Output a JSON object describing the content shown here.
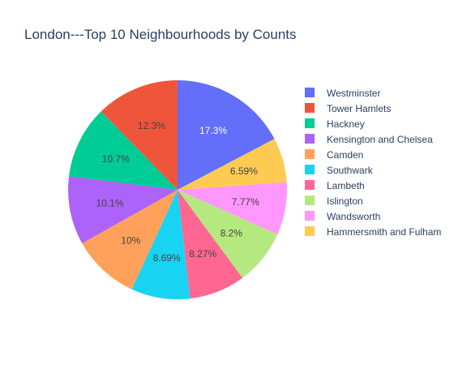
{
  "chart_data": {
    "type": "pie",
    "title": "London---Top 10 Neighbourhoods by Counts",
    "legend_position": "right",
    "slices": [
      {
        "name": "Westminster",
        "value": 17.3,
        "label": "17.3%",
        "color": "#636efa",
        "label_color": "#ffffff"
      },
      {
        "name": "Hammersmith and Fulham",
        "value": 6.59,
        "label": "6.59%",
        "color": "#fecb52",
        "label_color": "#444444"
      },
      {
        "name": "Wandsworth",
        "value": 7.77,
        "label": "7.77%",
        "color": "#ff97ff",
        "label_color": "#444444"
      },
      {
        "name": "Islington",
        "value": 8.2,
        "label": "8.2%",
        "color": "#b6e880",
        "label_color": "#444444"
      },
      {
        "name": "Lambeth",
        "value": 8.27,
        "label": "8.27%",
        "color": "#ff6692",
        "label_color": "#444444"
      },
      {
        "name": "Southwark",
        "value": 8.69,
        "label": "8.69%",
        "color": "#19d3f3",
        "label_color": "#444444"
      },
      {
        "name": "Camden",
        "value": 10,
        "label": "10%",
        "color": "#ffa15a",
        "label_color": "#444444"
      },
      {
        "name": "Kensington and Chelsea",
        "value": 10.1,
        "label": "10.1%",
        "color": "#ab63fa",
        "label_color": "#444444"
      },
      {
        "name": "Hackney",
        "value": 10.7,
        "label": "10.7%",
        "color": "#00cc96",
        "label_color": "#444444"
      },
      {
        "name": "Tower Hamlets",
        "value": 12.3,
        "label": "12.3%",
        "color": "#ef553b",
        "label_color": "#444444"
      }
    ],
    "legend": [
      {
        "name": "Westminster",
        "color": "#636efa"
      },
      {
        "name": "Tower Hamlets",
        "color": "#ef553b"
      },
      {
        "name": "Hackney",
        "color": "#00cc96"
      },
      {
        "name": "Kensington and Chelsea",
        "color": "#ab63fa"
      },
      {
        "name": "Camden",
        "color": "#ffa15a"
      },
      {
        "name": "Southwark",
        "color": "#19d3f3"
      },
      {
        "name": "Lambeth",
        "color": "#ff6692"
      },
      {
        "name": "Islington",
        "color": "#b6e880"
      },
      {
        "name": "Wandsworth",
        "color": "#ff97ff"
      },
      {
        "name": "Hammersmith and Fulham",
        "color": "#fecb52"
      }
    ]
  }
}
